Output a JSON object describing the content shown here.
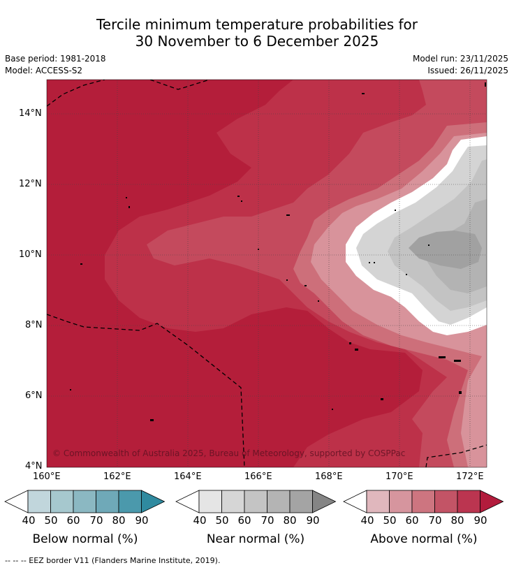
{
  "title": {
    "line1": "Tercile minimum temperature probabilities for",
    "line2": "30 November to 6 December 2025"
  },
  "meta": {
    "base_period": "Base period: 1981-2018",
    "model": "Model: ACCESS-S2",
    "model_run": "Model run: 23/11/2025",
    "issued": "Issued: 26/11/2025"
  },
  "map": {
    "lon_labels": [
      "160°E",
      "162°E",
      "164°E",
      "166°E",
      "168°E",
      "170°E",
      "172°E"
    ],
    "lat_labels": [
      "14°N",
      "12°N",
      "10°N",
      "8°N",
      "6°N",
      "4°N"
    ],
    "copyright": "© Commonwealth of Australia 2025, Bureau of Meteorology, supported by COSPPac",
    "colors": {
      "above_90": "#b41e3a",
      "above_80": "#bd3149",
      "above_70": "#c44a5d",
      "above_60": "#cd6f7a",
      "above_50": "#d8939b",
      "near_50": "#d4d4d4",
      "near_60": "#c3c3c3",
      "near_70": "#b3b3b3",
      "near_80": "#a1a1a1"
    }
  },
  "colorbars": [
    {
      "label": "Below normal (%)",
      "ticks": [
        "40",
        "50",
        "60",
        "70",
        "80",
        "90"
      ],
      "colors": [
        "#c1d6dc",
        "#a6c8ce",
        "#8bb8c2",
        "#6fa9b8",
        "#4b99ac",
        "#2f8a9f"
      ]
    },
    {
      "label": "Near normal (%)",
      "ticks": [
        "40",
        "50",
        "60",
        "70",
        "80",
        "90"
      ],
      "colors": [
        "#e5e5e5",
        "#d6d6d6",
        "#c4c4c4",
        "#b4b4b4",
        "#a4a4a4",
        "#858585"
      ]
    },
    {
      "label": "Above normal (%)",
      "ticks": [
        "40",
        "50",
        "60",
        "70",
        "80",
        "90"
      ],
      "colors": [
        "#e0b7bd",
        "#d6959e",
        "#cd7580",
        "#c35466",
        "#bb3550",
        "#b21c3c"
      ]
    }
  ],
  "footer": "--  --  -- EEZ border V11 (Flanders Marine Institute, 2019)."
}
